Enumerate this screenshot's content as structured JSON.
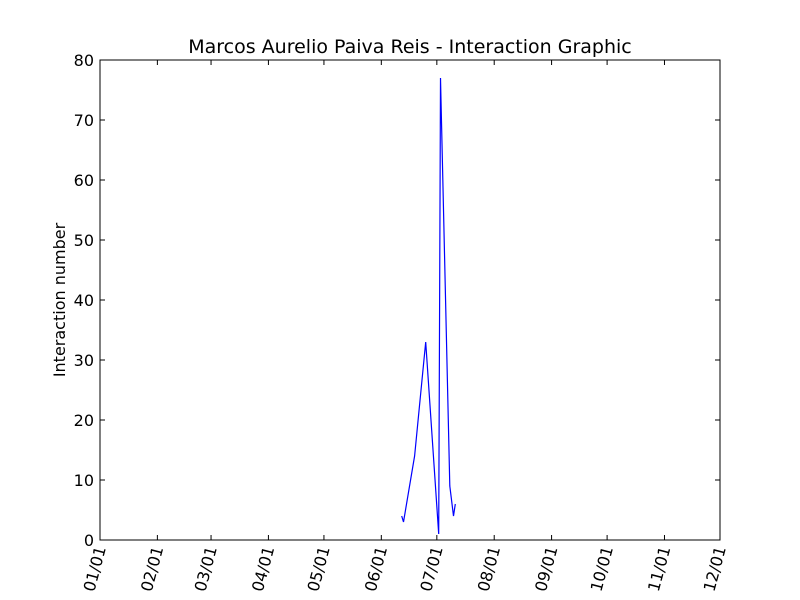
{
  "chart_data": {
    "type": "line",
    "title": "Marcos Aurelio Paiva Reis - Interaction Graphic",
    "xlabel": "",
    "ylabel": "Interaction number",
    "x_tick_labels": [
      "01/01",
      "02/01",
      "03/01",
      "04/01",
      "05/01",
      "06/01",
      "07/01",
      "08/01",
      "09/01",
      "10/01",
      "11/01",
      "12/01"
    ],
    "x_ticks": [
      "2020-01-01",
      "2020-02-01",
      "2020-03-01",
      "2020-04-01",
      "2020-05-01",
      "2020-06-01",
      "2020-07-01",
      "2020-08-01",
      "2020-09-01",
      "2020-10-01",
      "2020-11-01",
      "2020-12-01"
    ],
    "xlim": [
      "2020-01-01",
      "2020-12-01"
    ],
    "ylim": [
      0,
      80
    ],
    "y_ticks": [
      0,
      10,
      20,
      30,
      40,
      50,
      60,
      70,
      80
    ],
    "grid": false,
    "line_color": "#0000ff",
    "series": [
      {
        "x": [
          "2020-06-12",
          "2020-06-13",
          "2020-06-19",
          "2020-06-25",
          "2020-07-02",
          "2020-07-03",
          "2020-07-08",
          "2020-07-10",
          "2020-07-11"
        ],
        "y": [
          4,
          3,
          14,
          33,
          1,
          77,
          9,
          4,
          6
        ]
      }
    ]
  }
}
